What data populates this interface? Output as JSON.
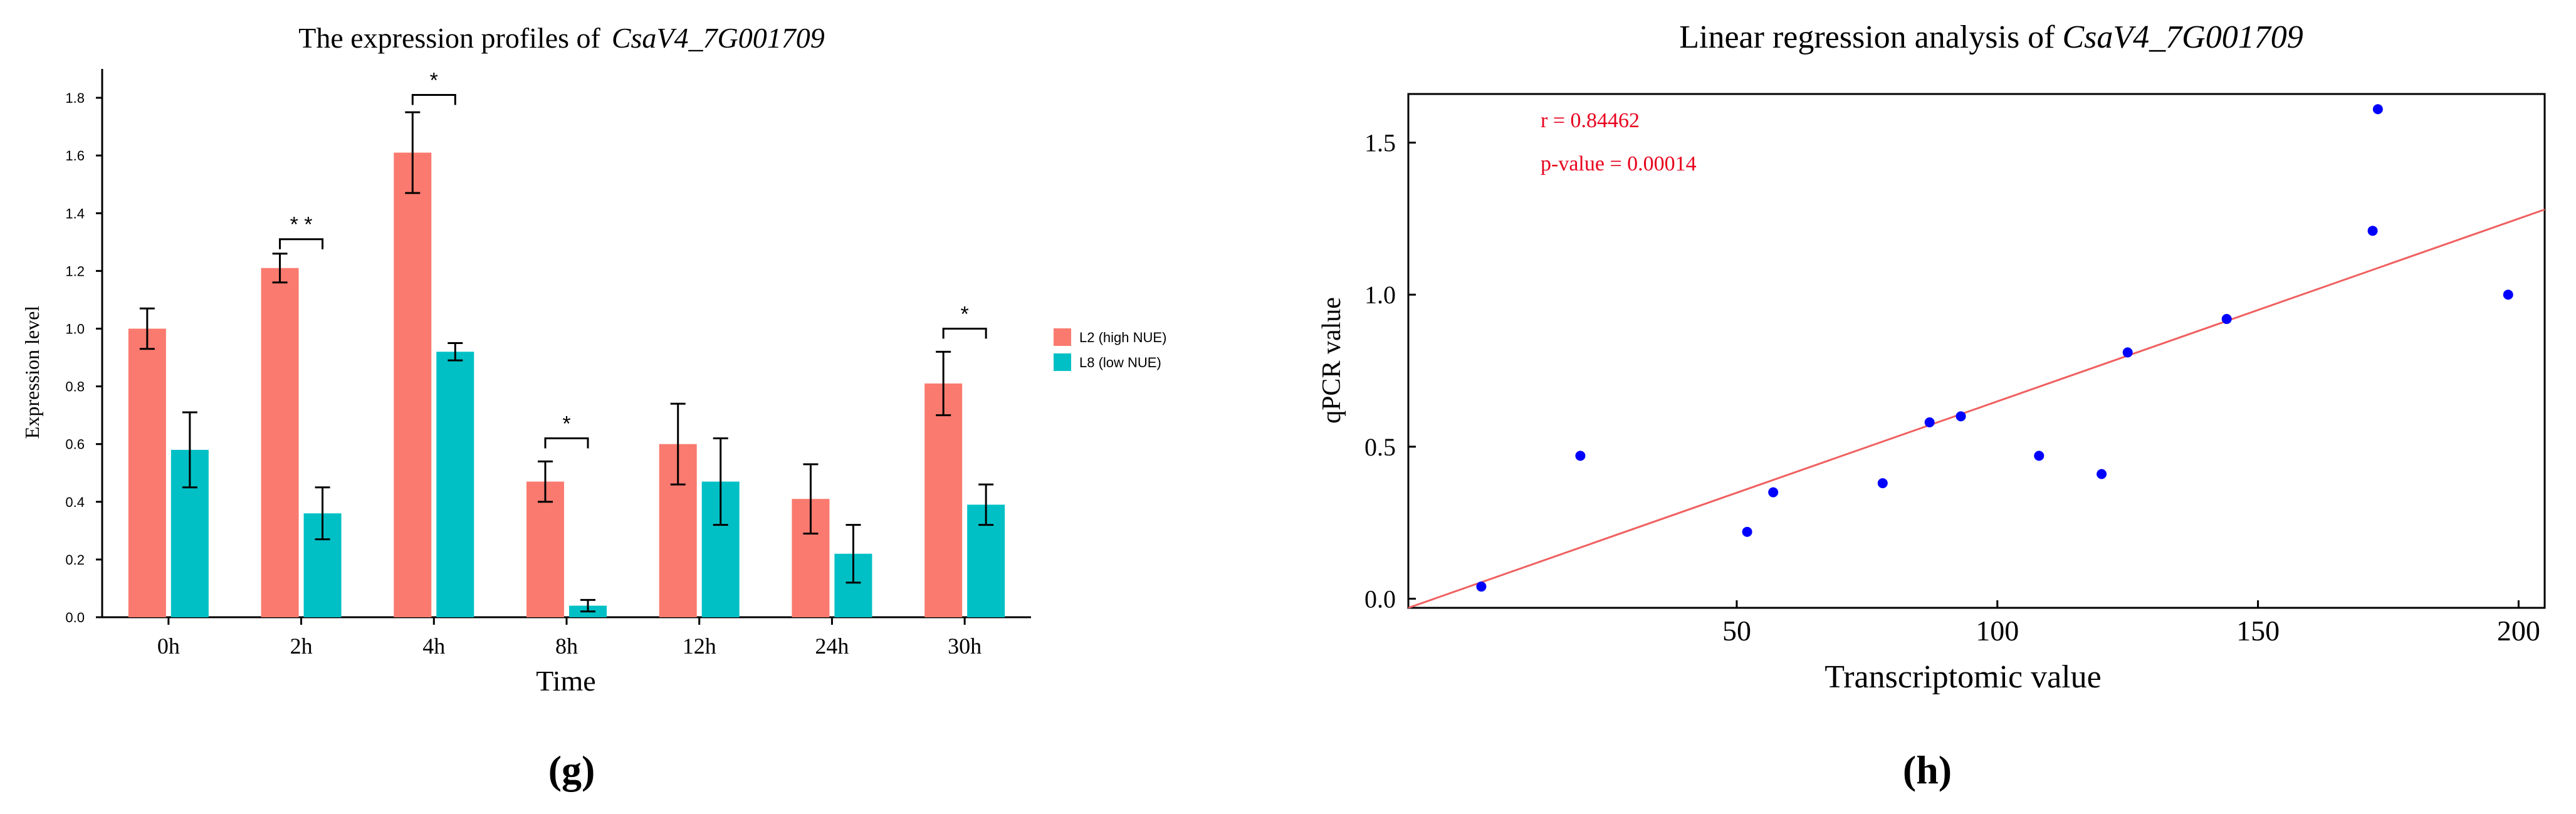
{
  "chart_data": [
    {
      "type": "bar",
      "panel_label": "(g)",
      "title_prefix": "The expression profiles of",
      "title_gene": "CsaV4_7G001709",
      "xlabel": "Time",
      "ylabel": "Expression level",
      "categories": [
        "0h",
        "2h",
        "4h",
        "8h",
        "12h",
        "24h",
        "30h"
      ],
      "ylim": [
        0,
        1.9
      ],
      "yticks": [
        "0.0",
        "0.2",
        "0.4",
        "0.6",
        "0.8",
        "1.0",
        "1.2",
        "1.4",
        "1.6",
        "1.8"
      ],
      "series": [
        {
          "name": "L2 (high NUE)",
          "color": "#FA7A6F",
          "values": [
            1.0,
            1.21,
            1.61,
            0.47,
            0.6,
            0.41,
            0.81
          ],
          "errors": [
            0.07,
            0.05,
            0.14,
            0.07,
            0.14,
            0.12,
            0.11
          ]
        },
        {
          "name": "L8 (low NUE)",
          "color": "#00C0C5",
          "values": [
            0.58,
            0.36,
            0.92,
            0.04,
            0.47,
            0.22,
            0.39
          ],
          "errors": [
            0.13,
            0.09,
            0.03,
            0.02,
            0.15,
            0.1,
            0.07
          ]
        }
      ],
      "significance": [
        {
          "category": "2h",
          "label": "* *",
          "level": 1.31
        },
        {
          "category": "4h",
          "label": "*",
          "level": 1.81
        },
        {
          "category": "8h",
          "label": "*",
          "level": 0.62
        },
        {
          "category": "30h",
          "label": "*",
          "level": 1.0
        }
      ]
    },
    {
      "type": "scatter",
      "panel_label": "(h)",
      "title_prefix": "Linear regression analysis of",
      "title_gene": "CsaV4_7G001709",
      "xlabel": "Transcriptomic value",
      "ylabel": "qPCR value",
      "xlim": [
        -13,
        205
      ],
      "ylim": [
        -0.03,
        1.66
      ],
      "xticks": [
        50,
        100,
        150,
        200
      ],
      "yticks": [
        "0.0",
        "0.5",
        "1.0",
        "1.5"
      ],
      "point_color": "#0000FF",
      "line_color": "#F06060",
      "annotation_color": "#E8001C",
      "points": [
        {
          "x": 1,
          "y": 0.04
        },
        {
          "x": 20,
          "y": 0.47
        },
        {
          "x": 52,
          "y": 0.22
        },
        {
          "x": 57,
          "y": 0.35
        },
        {
          "x": 78,
          "y": 0.38
        },
        {
          "x": 87,
          "y": 0.58
        },
        {
          "x": 93,
          "y": 0.6
        },
        {
          "x": 108,
          "y": 0.47
        },
        {
          "x": 120,
          "y": 0.41
        },
        {
          "x": 125,
          "y": 0.81
        },
        {
          "x": 144,
          "y": 0.92
        },
        {
          "x": 172,
          "y": 1.21
        },
        {
          "x": 173,
          "y": 1.61
        },
        {
          "x": 198,
          "y": 1.0
        }
      ],
      "regression_line": {
        "x0": -13,
        "y0": -0.03,
        "x1": 205,
        "y1": 1.28
      },
      "annotations": [
        "r = 0.84462",
        "p-value = 0.00014"
      ]
    }
  ]
}
